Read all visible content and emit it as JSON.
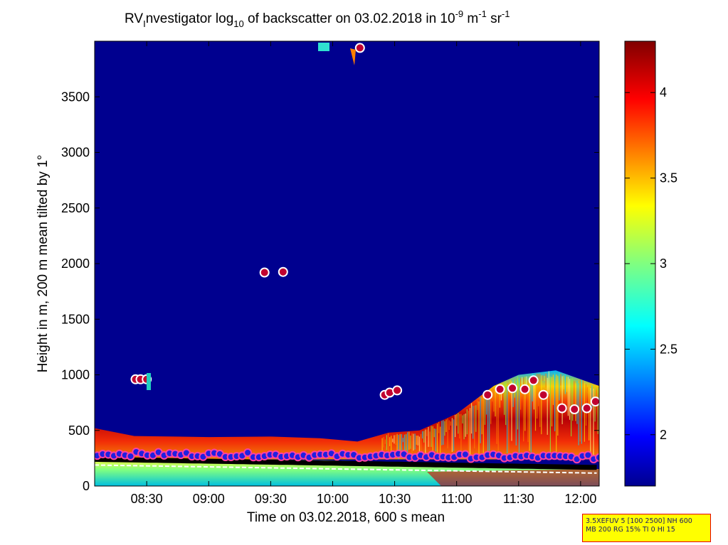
{
  "figure": {
    "title_prefix": "RV",
    "title_sub": "I",
    "title_mid": "nvestigator log",
    "title_log_base": "10",
    "title_rest": " of backscatter on 03.02.2018 in 10",
    "title_exp_1": "-9",
    "title_unit_m": " m",
    "title_exp_2": "-1",
    "title_unit_sr": " sr",
    "title_exp_3": "-1",
    "stamp_line_1": "3.5XEFUV 5 [100 2500] NH 600",
    "stamp_line_2": "MB 200 RG 15% TI 0 HI 15"
  },
  "chart_data": {
    "type": "heatmap",
    "xlabel": "Time on 03.02.2018, 600 s mean",
    "ylabel": "Height in m, 200 m mean tilted by 1°",
    "x_range_hours": [
      8.08,
      12.15
    ],
    "x_ticks": [
      {
        "label": "08:30",
        "value": 8.5
      },
      {
        "label": "09:00",
        "value": 9.0
      },
      {
        "label": "09:30",
        "value": 9.5
      },
      {
        "label": "10:00",
        "value": 10.0
      },
      {
        "label": "10:30",
        "value": 10.5
      },
      {
        "label": "11:00",
        "value": 11.0
      },
      {
        "label": "11:30",
        "value": 11.5
      },
      {
        "label": "12:00",
        "value": 12.0
      }
    ],
    "y_range": [
      0,
      4000
    ],
    "y_ticks": [
      0,
      500,
      1000,
      1500,
      2000,
      2500,
      3000,
      3500
    ],
    "colorbar": {
      "range": [
        1.7,
        4.3
      ],
      "ticks": [
        2,
        2.5,
        3,
        3.5,
        4
      ],
      "colormap": "jet"
    },
    "background_value": 1.75,
    "boundary_layer_top_m": [
      {
        "t": 8.08,
        "h": 520
      },
      {
        "t": 8.4,
        "h": 450
      },
      {
        "t": 9.0,
        "h": 440
      },
      {
        "t": 9.5,
        "h": 445
      },
      {
        "t": 9.9,
        "h": 430
      },
      {
        "t": 10.2,
        "h": 400
      },
      {
        "t": 10.45,
        "h": 480
      },
      {
        "t": 10.7,
        "h": 500
      },
      {
        "t": 11.0,
        "h": 650
      },
      {
        "t": 11.3,
        "h": 900
      },
      {
        "t": 11.5,
        "h": 1000
      },
      {
        "t": 11.8,
        "h": 1040
      },
      {
        "t": 12.15,
        "h": 900
      }
    ],
    "surface_layer_base_m": 240,
    "cloud_markers": [
      {
        "t": 8.41,
        "h": 960
      },
      {
        "t": 8.45,
        "h": 960
      },
      {
        "t": 8.5,
        "h": 960
      },
      {
        "t": 9.45,
        "h": 1920
      },
      {
        "t": 9.6,
        "h": 1925
      },
      {
        "t": 10.22,
        "h": 3940
      },
      {
        "t": 10.42,
        "h": 820
      },
      {
        "t": 10.46,
        "h": 840
      },
      {
        "t": 10.52,
        "h": 860
      },
      {
        "t": 11.25,
        "h": 820
      },
      {
        "t": 11.35,
        "h": 870
      },
      {
        "t": 11.45,
        "h": 880
      },
      {
        "t": 11.55,
        "h": 870
      },
      {
        "t": 11.62,
        "h": 950
      },
      {
        "t": 11.7,
        "h": 820
      },
      {
        "t": 11.85,
        "h": 700
      },
      {
        "t": 11.95,
        "h": 690
      },
      {
        "t": 12.05,
        "h": 700
      },
      {
        "t": 12.12,
        "h": 760
      }
    ],
    "mixing_layer_markers_m": 290,
    "black_band_m": 240
  }
}
